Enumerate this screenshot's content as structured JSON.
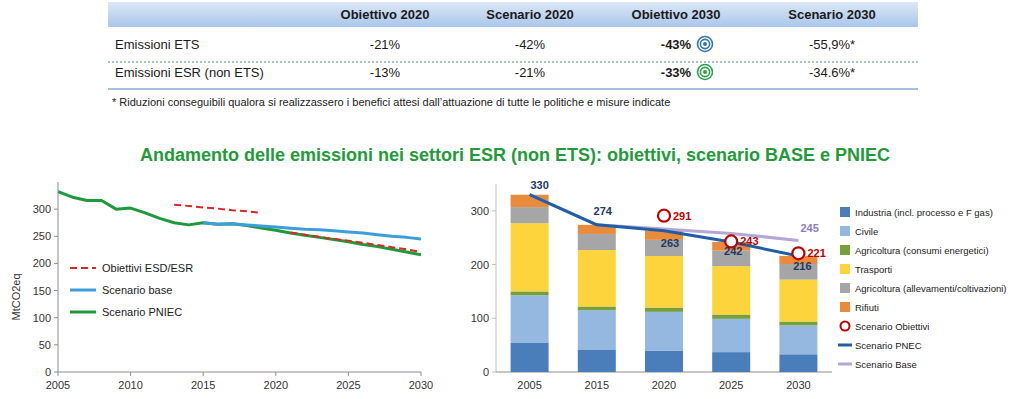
{
  "table": {
    "columns": [
      "Obiettivo 2020",
      "Scenario 2020",
      "Obiettivo 2030",
      "Scenario 2030"
    ],
    "rows": [
      {
        "label": "Emissioni ETS",
        "cells": [
          "-21%",
          "-42%",
          "-43%",
          "-55,9%*"
        ]
      },
      {
        "label": "Emissioni ESR (non ETS)",
        "cells": [
          "-13%",
          "-21%",
          "-33%",
          "-34.6%*"
        ]
      }
    ]
  },
  "footnote": "* Riduzioni conseguibili qualora si realizzassero i benefici attesi dall’attuazione di tutte le politiche e misure indicate",
  "heading": "Andamento delle emissioni nei settori ESR (non ETS): obiettivi, scenario BASE e PNIEC",
  "chart_data": [
    {
      "type": "line",
      "y_label": "MtCO2eq",
      "x": [
        2005,
        2006,
        2007,
        2008,
        2009,
        2010,
        2011,
        2012,
        2013,
        2014,
        2015,
        2016,
        2017,
        2018,
        2019,
        2020,
        2021,
        2022,
        2023,
        2024,
        2025,
        2026,
        2027,
        2028,
        2029,
        2030
      ],
      "xlim": [
        2005,
        2030
      ],
      "xticks": [
        2005,
        2010,
        2015,
        2020,
        2025,
        2030
      ],
      "ylim": [
        0,
        350
      ],
      "yticks": [
        0,
        50,
        100,
        150,
        200,
        250,
        300
      ],
      "grid": false,
      "legend": "bottom-left",
      "series": [
        {
          "name": "Obiettivi ESD/ESR",
          "color": "#e02424",
          "line_style": "dashed",
          "values": [
            null,
            null,
            null,
            null,
            null,
            null,
            null,
            null,
            308,
            306,
            303,
            301,
            298,
            296,
            293,
            null,
            257,
            253,
            249,
            245,
            242,
            238,
            234,
            230,
            226,
            221
          ]
        },
        {
          "name": "Scenario base",
          "color": "#3d9fd9",
          "line_style": "solid",
          "values": [
            null,
            null,
            null,
            null,
            null,
            null,
            null,
            null,
            null,
            null,
            275,
            272,
            273,
            271,
            269,
            267,
            265,
            263,
            262,
            260,
            258,
            256,
            253,
            250,
            248,
            245
          ]
        },
        {
          "name": "Scenario PNIEC",
          "color": "#1e9a3c",
          "line_style": "solid",
          "values": [
            332,
            322,
            316,
            316,
            300,
            302,
            293,
            283,
            275,
            271,
            275,
            272,
            273,
            270,
            265,
            261,
            256,
            252,
            248,
            244,
            240,
            235,
            231,
            226,
            221,
            216
          ]
        }
      ]
    },
    {
      "type": "bar",
      "stacked": true,
      "categories": [
        "2005",
        "2015",
        "2020",
        "2025",
        "2030"
      ],
      "ylim": [
        0,
        350
      ],
      "yticks": [
        0,
        100,
        200,
        300
      ],
      "grid": false,
      "legend": "right",
      "series": [
        {
          "name": "Industria (incl. processo e F gas)",
          "type": "bar",
          "color": "#4a7ebb",
          "values": [
            55,
            42,
            40,
            37,
            33
          ]
        },
        {
          "name": "Civile",
          "type": "bar",
          "color": "#95b8e0",
          "values": [
            88,
            73,
            72,
            62,
            54
          ]
        },
        {
          "name": "Agricoltura (consumi energetici)",
          "type": "bar",
          "color": "#77a03a",
          "values": [
            7,
            7,
            8,
            8,
            7
          ]
        },
        {
          "name": "Trasporti",
          "type": "bar",
          "color": "#fdd43c",
          "values": [
            127,
            105,
            96,
            90,
            78
          ]
        },
        {
          "name": "Agricoltura (allevamenti/coltivazioni)",
          "type": "bar",
          "color": "#a6a6a6",
          "values": [
            30,
            30,
            30,
            29,
            29
          ]
        },
        {
          "name": "Rifiuti",
          "type": "bar",
          "color": "#e98b3a",
          "values": [
            23,
            17,
            17,
            16,
            15
          ]
        },
        {
          "name": "Scenario Obiettivi",
          "type": "scatter",
          "marker": "circle",
          "color": "#c00000",
          "data_labels": true,
          "values": [
            null,
            null,
            291,
            243,
            221
          ]
        },
        {
          "name": "Scenario PNEC",
          "type": "line",
          "color": "#1f5fa6",
          "data_labels": true,
          "values": [
            330,
            274,
            263,
            242,
            216
          ]
        },
        {
          "name": "Scenario Base",
          "type": "line",
          "color": "#b4a7d6",
          "values": [
            330,
            274,
            266,
            258,
            245
          ],
          "value_labels": [
            null,
            null,
            null,
            null,
            "245"
          ]
        }
      ]
    }
  ]
}
